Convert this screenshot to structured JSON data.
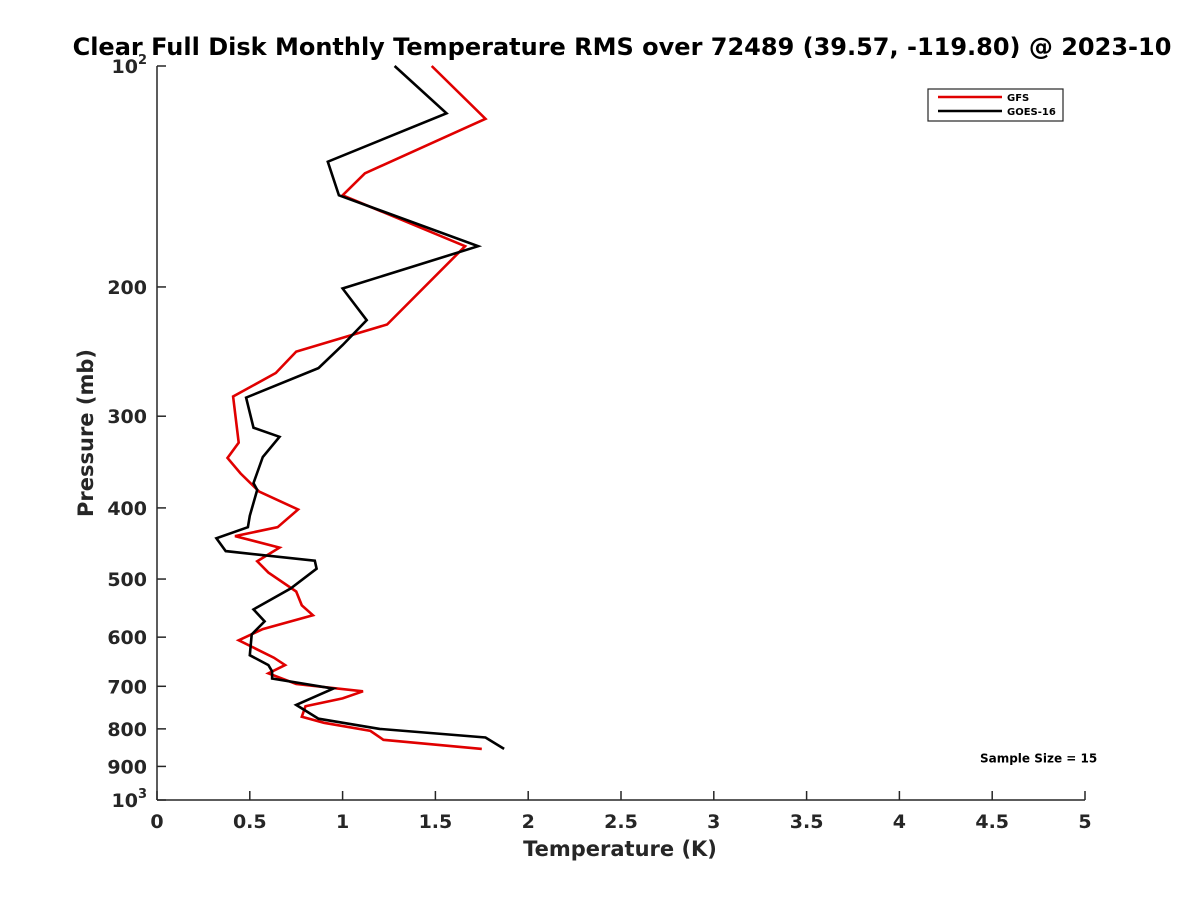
{
  "chart_data": {
    "type": "line",
    "title": "Clear Full Disk Monthly Temperature RMS over 72489 (39.57, -119.80) @ 2023-10",
    "xlabel": "Temperature (K)",
    "ylabel": "Pressure (mb)",
    "xlim": [
      0,
      5
    ],
    "ylim": [
      100,
      1000
    ],
    "yscale": "log",
    "y_reversed": true,
    "x_ticks": [
      0,
      0.5,
      1,
      1.5,
      2,
      2.5,
      3,
      3.5,
      4,
      4.5,
      5
    ],
    "x_tick_labels": [
      "0",
      "0.5",
      "1",
      "1.5",
      "2",
      "2.5",
      "3",
      "3.5",
      "4",
      "4.5",
      "5"
    ],
    "y_ticks": [
      {
        "value": 100,
        "base": "10",
        "exp": "2"
      },
      {
        "value": 200,
        "label": "200"
      },
      {
        "value": 300,
        "label": "300"
      },
      {
        "value": 400,
        "label": "400"
      },
      {
        "value": 500,
        "label": "500"
      },
      {
        "value": 600,
        "label": "600"
      },
      {
        "value": 700,
        "label": "700"
      },
      {
        "value": 800,
        "label": "800"
      },
      {
        "value": 900,
        "label": "900"
      },
      {
        "value": 1000,
        "base": "10",
        "exp": "3"
      }
    ],
    "legend_position": "top-right",
    "series": [
      {
        "name": "GFS",
        "color": "#e00000",
        "points": [
          [
            1.48,
            100
          ],
          [
            1.77,
            118
          ],
          [
            1.12,
            140
          ],
          [
            1.0,
            150
          ],
          [
            1.66,
            176
          ],
          [
            1.24,
            225
          ],
          [
            0.75,
            245
          ],
          [
            0.64,
            262
          ],
          [
            0.41,
            282
          ],
          [
            0.44,
            326
          ],
          [
            0.38,
            342
          ],
          [
            0.45,
            359
          ],
          [
            0.55,
            380
          ],
          [
            0.76,
            402
          ],
          [
            0.65,
            425
          ],
          [
            0.42,
            437
          ],
          [
            0.66,
            453
          ],
          [
            0.54,
            473
          ],
          [
            0.6,
            490
          ],
          [
            0.75,
            520
          ],
          [
            0.78,
            543
          ],
          [
            0.84,
            560
          ],
          [
            0.57,
            585
          ],
          [
            0.44,
            606
          ],
          [
            0.63,
            640
          ],
          [
            0.69,
            655
          ],
          [
            0.6,
            672
          ],
          [
            0.75,
            695
          ],
          [
            1.11,
            711
          ],
          [
            1.0,
            727
          ],
          [
            0.8,
            745
          ],
          [
            0.78,
            770
          ],
          [
            0.9,
            785
          ],
          [
            1.15,
            805
          ],
          [
            1.22,
            828
          ],
          [
            1.75,
            852
          ]
        ]
      },
      {
        "name": "GOES-16",
        "color": "#000000",
        "points": [
          [
            1.28,
            100
          ],
          [
            1.56,
            116
          ],
          [
            0.92,
            135
          ],
          [
            0.98,
            150
          ],
          [
            1.73,
            176
          ],
          [
            1.0,
            201
          ],
          [
            1.13,
            222
          ],
          [
            1.0,
            240
          ],
          [
            0.87,
            258
          ],
          [
            0.48,
            283
          ],
          [
            0.52,
            311
          ],
          [
            0.66,
            320
          ],
          [
            0.57,
            341
          ],
          [
            0.52,
            370
          ],
          [
            0.54,
            378
          ],
          [
            0.5,
            410
          ],
          [
            0.49,
            425
          ],
          [
            0.32,
            440
          ],
          [
            0.37,
            458
          ],
          [
            0.85,
            472
          ],
          [
            0.86,
            484
          ],
          [
            0.72,
            515
          ],
          [
            0.52,
            550
          ],
          [
            0.58,
            571
          ],
          [
            0.51,
            595
          ],
          [
            0.5,
            635
          ],
          [
            0.6,
            655
          ],
          [
            0.62,
            668
          ],
          [
            0.62,
            683
          ],
          [
            0.95,
            705
          ],
          [
            0.75,
            742
          ],
          [
            0.87,
            775
          ],
          [
            1.2,
            800
          ],
          [
            1.77,
            822
          ],
          [
            1.87,
            852
          ]
        ]
      }
    ],
    "annotations": [
      {
        "text": "Sample Size = 15",
        "x": 4.75,
        "y": 915
      }
    ]
  }
}
